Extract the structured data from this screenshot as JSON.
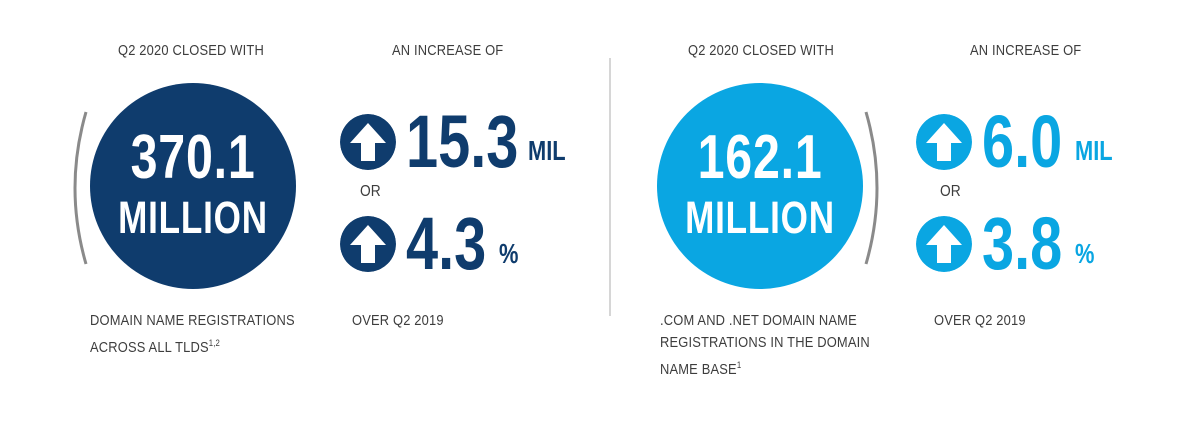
{
  "colors": {
    "navy": "#0f3c6d",
    "sky": "#0aa6e2",
    "text": "#3d3d3d",
    "bracket": "#8a8a8a"
  },
  "left": {
    "heading_closed": "Q2 2020 CLOSED WITH",
    "heading_increase": "AN INCREASE OF",
    "circle_value": "370.1",
    "circle_unit": "MILLION",
    "stat1_value": "15.3",
    "stat1_unit": "MIL",
    "or_label": "OR",
    "stat2_value": "4.3",
    "stat2_unit": "%",
    "desc_line1": "DOMAIN NAME REGISTRATIONS",
    "desc_line2": "ACROSS ALL TLDS",
    "desc_footnote": "1,2",
    "over_label": "OVER Q2 2019",
    "arrow_icon": "up-arrow-icon"
  },
  "right": {
    "heading_closed": "Q2 2020 CLOSED WITH",
    "heading_increase": "AN INCREASE OF",
    "circle_value": "162.1",
    "circle_unit": "MILLION",
    "stat1_value": "6.0",
    "stat1_unit": "MIL",
    "or_label": "OR",
    "stat2_value": "3.8",
    "stat2_unit": "%",
    "desc_line1": ".COM AND .NET DOMAIN NAME",
    "desc_line2": "REGISTRATIONS IN THE DOMAIN",
    "desc_line3": "NAME BASE",
    "desc_footnote": "1",
    "over_label": "OVER Q2 2019",
    "arrow_icon": "up-arrow-icon"
  }
}
